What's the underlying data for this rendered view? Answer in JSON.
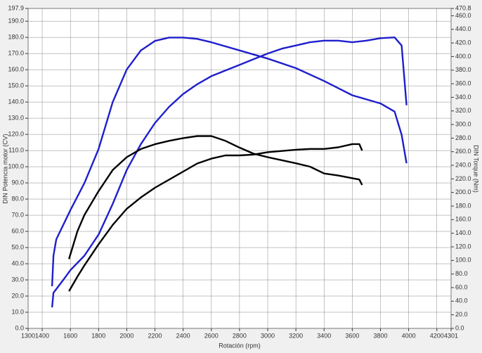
{
  "chart_data": {
    "type": "line",
    "xlabel": "Rotación (rpm)",
    "ylabel": "DIN Potencia motor (CV)",
    "y2label": "DIN Torque (Nm)",
    "xlim": [
      1300,
      4301
    ],
    "xticks": [
      1300,
      1400,
      1600,
      1800,
      2000,
      2200,
      2400,
      2600,
      2800,
      3000,
      3200,
      3400,
      3600,
      3800,
      4000,
      4200,
      4301
    ],
    "ylim": [
      0,
      197.9
    ],
    "yticks": [
      {
        "value": 0,
        "label": "0.0"
      },
      {
        "value": 10,
        "label": "10.0"
      },
      {
        "value": 20,
        "label": "20.0"
      },
      {
        "value": 30,
        "label": "30.0"
      },
      {
        "value": 40,
        "label": "40.0"
      },
      {
        "value": 50,
        "label": "50.0"
      },
      {
        "value": 60,
        "label": "60.0"
      },
      {
        "value": 70,
        "label": "70.0"
      },
      {
        "value": 80,
        "label": "80.0"
      },
      {
        "value": 90,
        "label": "90.0"
      },
      {
        "value": 100,
        "label": "100.0"
      },
      {
        "value": 110,
        "label": "110.0"
      },
      {
        "value": 120,
        "label": "120.0"
      },
      {
        "value": 130,
        "label": "130.0"
      },
      {
        "value": 140,
        "label": "140.0"
      },
      {
        "value": 150,
        "label": "150.0"
      },
      {
        "value": 160,
        "label": "160.0"
      },
      {
        "value": 170,
        "label": "170.0"
      },
      {
        "value": 180,
        "label": "180.0"
      },
      {
        "value": 190,
        "label": "190.0"
      },
      197.9
    ],
    "y2lim": [
      0,
      470.8
    ],
    "y2ticks": [
      {
        "value": 0,
        "label": "0.0"
      },
      {
        "value": 20,
        "label": "20.0"
      },
      {
        "value": 40,
        "label": "40.0"
      },
      {
        "value": 60,
        "label": "60.0"
      },
      {
        "value": 80,
        "label": "80.0"
      },
      {
        "value": 100,
        "label": "100.0"
      },
      {
        "value": 120,
        "label": "120.0"
      },
      {
        "value": 140,
        "label": "140.0"
      },
      {
        "value": 160,
        "label": "160.0"
      },
      {
        "value": 180,
        "label": "180.0"
      },
      {
        "value": 200,
        "label": "200.0"
      },
      {
        "value": 220,
        "label": "220.0"
      },
      {
        "value": 240,
        "label": "240.0"
      },
      {
        "value": 260,
        "label": "260.0"
      },
      {
        "value": 280,
        "label": "280.0"
      },
      {
        "value": 300,
        "label": "300.0"
      },
      {
        "value": 320,
        "label": "320.0"
      },
      {
        "value": 340,
        "label": "340.0"
      },
      {
        "value": 360,
        "label": "360.0"
      },
      {
        "value": 380,
        "label": "380.0"
      },
      {
        "value": 400,
        "label": "400.0"
      },
      {
        "value": 420,
        "label": "420.0"
      },
      {
        "value": 440,
        "label": "440.0"
      },
      {
        "value": 460,
        "label": "460.0"
      },
      470.8
    ],
    "grid": true,
    "series": [
      {
        "color": "#1f1fcc",
        "axis": "y",
        "x": [
          1470,
          1480,
          1550,
          1600,
          1700,
          1800,
          1900,
          2000,
          2100,
          2200,
          2300,
          2400,
          2500,
          2600,
          2800,
          3000,
          3100,
          3200,
          3300,
          3400,
          3500,
          3600,
          3700,
          3800,
          3900,
          3950,
          3985
        ],
        "values": [
          13,
          22,
          30,
          36,
          45,
          58,
          77,
          98,
          114,
          127,
          137,
          145,
          151,
          156,
          163,
          170,
          173,
          175,
          177,
          178,
          178,
          177,
          178,
          179.5,
          180,
          175,
          138
        ]
      },
      {
        "color": "#1f1fcc",
        "axis": "y2",
        "x": [
          1470,
          1480,
          1500,
          1600,
          1700,
          1800,
          1900,
          2000,
          2100,
          2200,
          2300,
          2400,
          2500,
          2600,
          2800,
          3000,
          3200,
          3400,
          3600,
          3800,
          3900,
          3950,
          3985
        ],
        "values": [
          62,
          107,
          131,
          174,
          214,
          264,
          333,
          381,
          409,
          423,
          428,
          428,
          426,
          421,
          409,
          397,
          383,
          364,
          343,
          331,
          319,
          285,
          243
        ]
      },
      {
        "color": "#000000",
        "axis": "y",
        "x": [
          1590,
          1650,
          1700,
          1800,
          1900,
          2000,
          2100,
          2200,
          2300,
          2400,
          2500,
          2600,
          2700,
          2800,
          2900,
          3000,
          3200,
          3300,
          3400,
          3500,
          3600,
          3650,
          3670
        ],
        "values": [
          23,
          32,
          39,
          52,
          64,
          74,
          81,
          87,
          92,
          97,
          102,
          105,
          107,
          107,
          107.5,
          109,
          110.5,
          111,
          111,
          112,
          114,
          114,
          110
        ]
      },
      {
        "color": "#000000",
        "axis": "y2",
        "x": [
          1590,
          1650,
          1700,
          1800,
          1900,
          2000,
          2100,
          2200,
          2300,
          2400,
          2500,
          2600,
          2700,
          2800,
          2900,
          3000,
          3200,
          3300,
          3400,
          3500,
          3600,
          3650,
          3670
        ],
        "values": [
          102,
          143,
          167,
          202,
          233,
          252,
          264,
          271,
          276,
          280,
          283,
          283,
          276,
          266,
          257,
          252,
          243,
          238,
          228,
          225,
          221,
          219,
          211
        ]
      }
    ]
  }
}
